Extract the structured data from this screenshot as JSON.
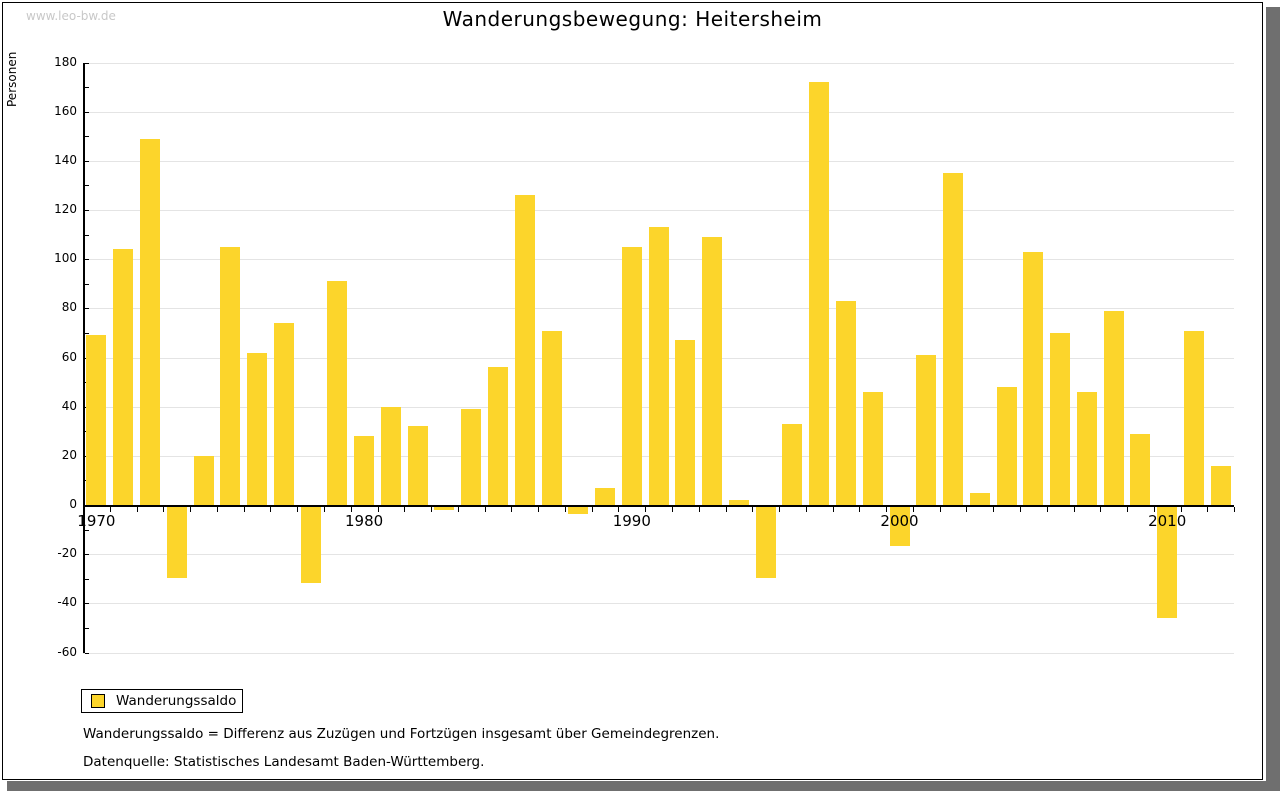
{
  "watermark": "www.leo-bw.de",
  "title": "Wanderungsbewegung: Heitersheim",
  "legend": {
    "label": "Wanderungssaldo"
  },
  "footnotes": [
    "Wanderungssaldo = Differenz aus Zuzügen und Fortzügen insgesamt über Gemeindegrenzen.",
    "Datenquelle: Statistisches Landesamt Baden-Württemberg."
  ],
  "colors": {
    "bar": "#FCD52B",
    "grid": "#E4E4E4",
    "axis": "#000000",
    "watermark": "#C8C8C8",
    "shadow": "#6F6F6F"
  },
  "chart_data": {
    "type": "bar",
    "title": "Wanderungsbewegung: Heitersheim",
    "xlabel": "",
    "ylabel": "Personen",
    "ylim": [
      -60,
      180
    ],
    "ytick_step": 20,
    "yminor_step": 10,
    "grid": "horizontal",
    "legend_position": "bottom-left",
    "series_name": "Wanderungssaldo",
    "x_decade_labels": [
      "1970",
      "1980",
      "1990",
      "2000",
      "2010"
    ],
    "categories": [
      1970,
      1971,
      1972,
      1973,
      1974,
      1975,
      1976,
      1977,
      1978,
      1979,
      1980,
      1981,
      1982,
      1983,
      1984,
      1985,
      1986,
      1987,
      1988,
      1989,
      1990,
      1991,
      1992,
      1993,
      1994,
      1995,
      1996,
      1997,
      1998,
      1999,
      2000,
      2001,
      2002,
      2003,
      2004,
      2005,
      2006,
      2007,
      2008,
      2009,
      2010,
      2011,
      2012
    ],
    "values": [
      69,
      104,
      149,
      -29,
      20,
      105,
      62,
      74,
      -31,
      91,
      28,
      40,
      32,
      -1,
      39,
      56,
      126,
      71,
      -3,
      7,
      105,
      113,
      67,
      109,
      2,
      -29,
      33,
      172,
      83,
      46,
      -16,
      61,
      135,
      5,
      48,
      103,
      70,
      46,
      79,
      29,
      -45,
      71,
      16
    ]
  }
}
